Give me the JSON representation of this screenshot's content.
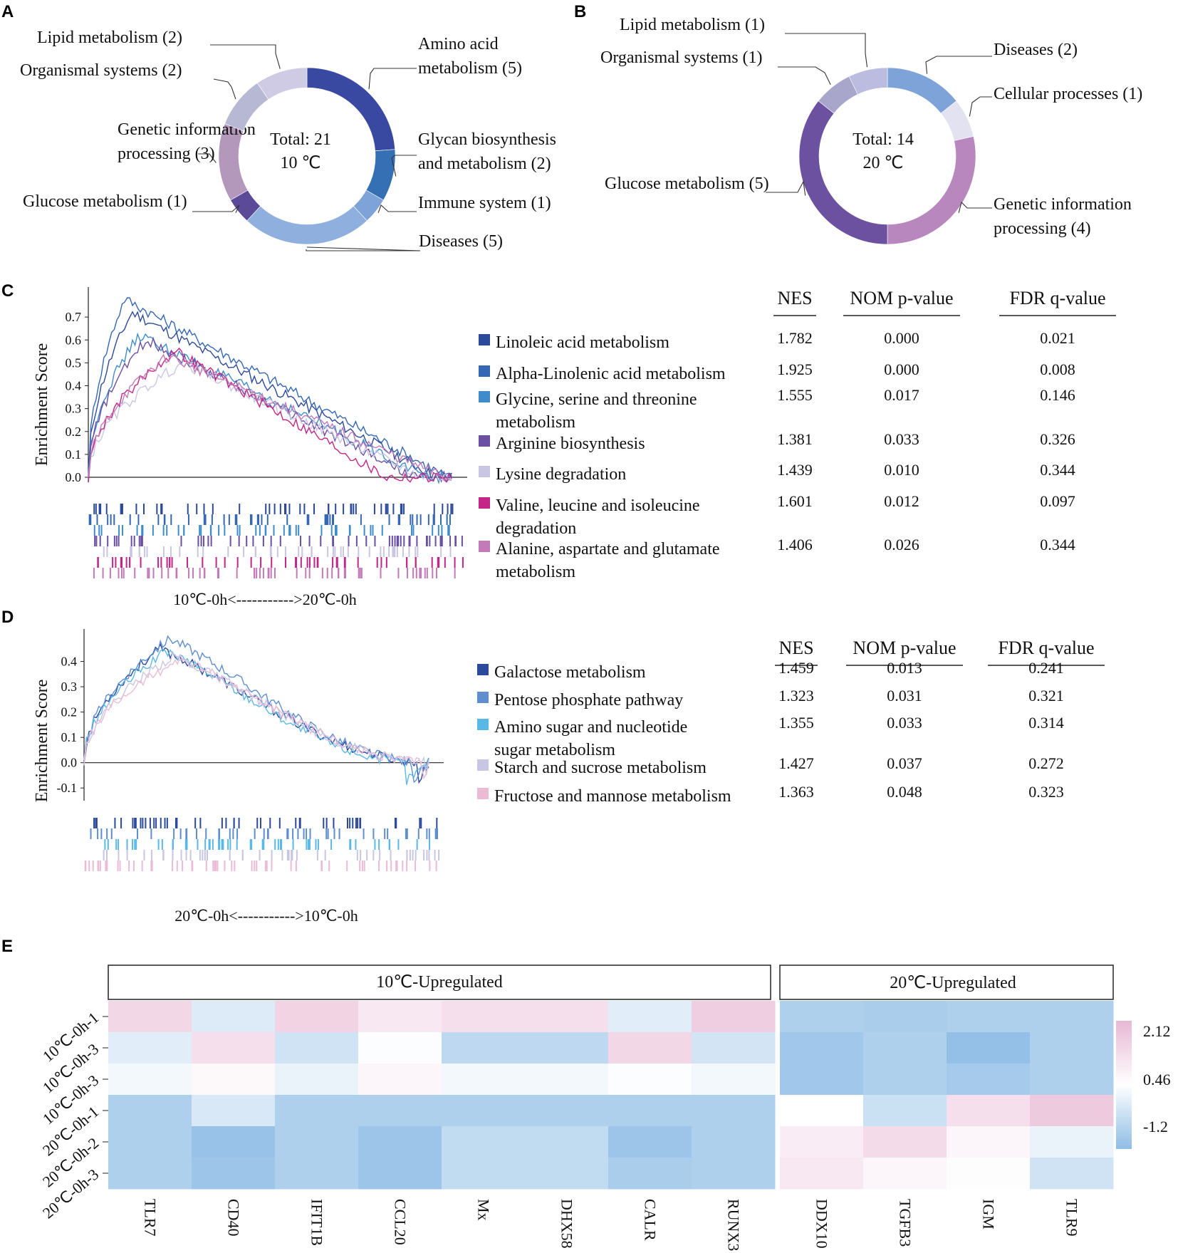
{
  "colors": {
    "amino": "#3949a1",
    "glycan": "#3570b5",
    "immune": "#7ea3d8",
    "diseasesA": "#8fb0df",
    "glucose": "#5b4a97",
    "genetic": "#b398bc",
    "organismal": "#b7b8d3",
    "lipid": "#cfcbe4",
    "diseasesB": "#7ea3d8",
    "cellular": "#e3e2f0",
    "geneticB": "#b887bd",
    "glucoseB": "#6c51a0",
    "organismalB": "#a8a6cb",
    "lipidB": "#bcbbe0"
  },
  "panels": {
    "a": "A",
    "b": "B",
    "c": "C",
    "d": "D",
    "e": "E"
  },
  "chart_data": [
    {
      "panel": "A",
      "type": "pie",
      "center_line1": "Total: 21",
      "center_line2": "10 ℃",
      "slices": [
        {
          "label": "Amino acid metabolism (5)",
          "label_lines": [
            "Amino acid",
            "metabolism (5)"
          ],
          "value": 5,
          "color": "#3949a1"
        },
        {
          "label": "Glycan biosynthesis and metabolism (2)",
          "label_lines": [
            "Glycan biosynthesis",
            "and metabolism (2)"
          ],
          "value": 2,
          "color": "#3570b5"
        },
        {
          "label": "Immune system (1)",
          "label_lines": [
            "Immune system (1)"
          ],
          "value": 1,
          "color": "#7ea3d8"
        },
        {
          "label": "Diseases (5)",
          "label_lines": [
            "Diseases (5)"
          ],
          "value": 5,
          "color": "#8fb0df"
        },
        {
          "label": "Glucose metabolism (1)",
          "label_lines": [
            "Glucose metabolism (1)"
          ],
          "value": 1,
          "color": "#5b4a97"
        },
        {
          "label": "Genetic information processing (3)",
          "label_lines": [
            "Genetic information",
            "processing (3)"
          ],
          "value": 3,
          "color": "#b398bc"
        },
        {
          "label": "Organismal systems (2)",
          "label_lines": [
            "Organismal  systems (2)"
          ],
          "value": 2,
          "color": "#b7b8d3"
        },
        {
          "label": "Lipid metabolism (2)",
          "label_lines": [
            "Lipid  metabolism (2)"
          ],
          "value": 2,
          "color": "#cfcbe4"
        }
      ]
    },
    {
      "panel": "B",
      "type": "pie",
      "center_line1": "Total: 14",
      "center_line2": "20 ℃",
      "slices": [
        {
          "label": "Diseases (2)",
          "label_lines": [
            "Diseases (2)"
          ],
          "value": 2,
          "color": "#7ea3d8"
        },
        {
          "label": "Cellular processes (1)",
          "label_lines": [
            "Cellular processes (1)"
          ],
          "value": 1,
          "color": "#e3e2f0"
        },
        {
          "label": "Genetic information processing (4)",
          "label_lines": [
            "Genetic information",
            "processing (4)"
          ],
          "value": 4,
          "color": "#b887bd"
        },
        {
          "label": "Glucose metabolism (5)",
          "label_lines": [
            "Glucose metabolism (5)"
          ],
          "value": 5,
          "color": "#6c51a0"
        },
        {
          "label": "Organismal systems (1)",
          "label_lines": [
            "Organismal  systems (1)"
          ],
          "value": 1,
          "color": "#a8a6cb"
        },
        {
          "label": "Lipid metabolism (1)",
          "label_lines": [
            "Lipid  metabolism (1)"
          ],
          "value": 1,
          "color": "#bcbbe0"
        }
      ]
    },
    {
      "panel": "C",
      "type": "line",
      "ylabel": "Enrichment Score",
      "yticks": [
        "0.7",
        "0.6",
        "0.5",
        "0.4",
        "0.3",
        "0.2",
        "0.1",
        "0.0"
      ],
      "ylim": [
        0,
        0.8
      ],
      "xlabel": "10℃-0h<----------->20℃-0h",
      "table_headers": [
        "NES",
        "NOM p-value",
        "FDR q-value"
      ],
      "series": [
        {
          "name": "Linoleic acid metabolism",
          "name_lines": [
            "Linoleic acid metabolism"
          ],
          "color": "#2c4a9c",
          "nes": "1.782",
          "nom_p": "0.000",
          "fdr_q": "0.021",
          "peak": 0.72,
          "peak_at": 0.12,
          "end_at": 0.96
        },
        {
          "name": "Alpha-Linolenic acid metabolism",
          "name_lines": [
            "Alpha-Linolenic acid metabolism"
          ],
          "color": "#3467b4",
          "nes": "1.925",
          "nom_p": "0.000",
          "fdr_q": "0.008",
          "peak": 0.78,
          "peak_at": 0.1,
          "end_at": 0.99
        },
        {
          "name": "Glycine, serine and threonine metabolism",
          "name_lines": [
            "Glycine, serine and threonine",
            "metabolism"
          ],
          "color": "#3f8ccc",
          "nes": "1.555",
          "nom_p": "0.017",
          "fdr_q": "0.146",
          "peak": 0.62,
          "peak_at": 0.14,
          "end_at": 0.94
        },
        {
          "name": "Arginine biosynthesis",
          "name_lines": [
            "Arginine biosynthesis"
          ],
          "color": "#6a4fa3",
          "nes": "1.381",
          "nom_p": "0.033",
          "fdr_q": "0.326",
          "peak": 0.6,
          "peak_at": 0.16,
          "end_at": 0.9
        },
        {
          "name": "Lysine degradation",
          "name_lines": [
            "Lysine degradation"
          ],
          "color": "#c8c6e2",
          "nes": "1.439",
          "nom_p": "0.010",
          "fdr_q": "0.344",
          "peak": 0.5,
          "peak_at": 0.26,
          "end_at": 0.92
        },
        {
          "name": "Valine, leucine and isoleucine degradation",
          "name_lines": [
            "Valine, leucine and isoleucine",
            "degradation"
          ],
          "color": "#c42587",
          "nes": "1.601",
          "nom_p": "0.012",
          "fdr_q": "0.097",
          "peak": 0.55,
          "peak_at": 0.24,
          "end_at": 0.82
        },
        {
          "name": "Alanine, aspartate and glutamate metabolism",
          "name_lines": [
            "Alanine, aspartate and glutamate",
            "metabolism"
          ],
          "color": "#c27bb8",
          "nes": "1.406",
          "nom_p": "0.026",
          "fdr_q": "0.344",
          "peak": 0.53,
          "peak_at": 0.22,
          "end_at": 0.98
        }
      ]
    },
    {
      "panel": "D",
      "type": "line",
      "ylabel": "Enrichment Score",
      "yticks": [
        "0.4",
        "0.3",
        "0.2",
        "0.1",
        "0.0",
        "-0.1"
      ],
      "ylim": [
        -0.15,
        0.5
      ],
      "xlabel": "20℃-0h<----------->10℃-0h",
      "table_headers": [
        "NES",
        "NOM p-value",
        "FDR q-value"
      ],
      "series": [
        {
          "name": "Galactose metabolism",
          "name_lines": [
            "Galactose metabolism"
          ],
          "color": "#2c4a9c",
          "nes": "1.459",
          "nom_p": "0.013",
          "fdr_q": "0.241",
          "peak": 0.45,
          "peak_at": 0.22,
          "end_at": 0.97
        },
        {
          "name": "Pentose phosphate pathway",
          "name_lines": [
            "Pentose phosphate pathway"
          ],
          "color": "#5e8ed0",
          "nes": "1.323",
          "nom_p": "0.031",
          "fdr_q": "0.321",
          "peak": 0.49,
          "peak_at": 0.25,
          "end_at": 0.95
        },
        {
          "name": "Amino sugar and nucleotide sugar metabolism",
          "name_lines": [
            "Amino sugar and nucleotide",
            " sugar metabolism"
          ],
          "color": "#5ab8e6",
          "nes": "1.355",
          "nom_p": "0.033",
          "fdr_q": "0.314",
          "peak": 0.44,
          "peak_at": 0.24,
          "end_at": 0.93
        },
        {
          "name": "Starch and sucrose metabolism",
          "name_lines": [
            "Starch and sucrose metabolism"
          ],
          "color": "#c8c6e2",
          "nes": "1.427",
          "nom_p": "0.037",
          "fdr_q": "0.272",
          "peak": 0.42,
          "peak_at": 0.26,
          "end_at": 0.99
        },
        {
          "name": "Fructose and mannose metabolism",
          "name_lines": [
            "Fructose and mannose metabolism"
          ],
          "color": "#ebbbd6",
          "nes": "1.363",
          "nom_p": "0.048",
          "fdr_q": "0.323",
          "peak": 0.41,
          "peak_at": 0.28,
          "end_at": 0.98
        }
      ]
    },
    {
      "panel": "E",
      "type": "heatmap",
      "group_labels": [
        "10℃-Upregulated",
        "20℃-Upregulated"
      ],
      "rows": [
        "10℃-0h-1",
        "10℃-0h-3",
        "10℃-0h-3",
        "20℃-0h-1",
        "20℃-0h-2",
        "20℃-0h-3"
      ],
      "cols_left": [
        "TLR7",
        "CD40",
        "IFIT1B",
        "CCL20",
        "Mx",
        "DHX58",
        "CALR",
        "RUNX3"
      ],
      "cols_right": [
        "DDX10",
        "TGFB3",
        "IGM",
        "TLR9"
      ],
      "legend_ticks": [
        "2.12",
        "0.46",
        "-1.2"
      ],
      "vmin": -2.0,
      "vmax": 2.12,
      "values_left": [
        [
          1.4,
          -0.3,
          1.5,
          1.0,
          1.2,
          1.2,
          -0.2,
          1.6
        ],
        [
          -0.2,
          1.2,
          -0.6,
          0.4,
          -1.0,
          -1.0,
          1.4,
          -0.5
        ],
        [
          0.2,
          0.6,
          0.0,
          0.7,
          0.2,
          0.2,
          0.4,
          0.2
        ],
        [
          -1.3,
          -0.4,
          -1.3,
          -1.3,
          -1.3,
          -1.3,
          -1.3,
          -1.3
        ],
        [
          -1.3,
          -1.8,
          -1.3,
          -1.7,
          -0.9,
          -0.9,
          -1.7,
          -1.3
        ],
        [
          -1.3,
          -1.7,
          -1.3,
          -1.7,
          -0.9,
          -0.9,
          -1.4,
          -1.3
        ]
      ],
      "values_right": [
        [
          -1.3,
          -1.4,
          -1.3,
          -1.3
        ],
        [
          -1.6,
          -1.3,
          -1.9,
          -1.3
        ],
        [
          -1.6,
          -1.3,
          -1.5,
          -1.3
        ],
        [
          0.46,
          -0.7,
          1.2,
          1.7
        ],
        [
          0.9,
          1.3,
          0.7,
          0.0
        ],
        [
          1.0,
          0.7,
          0.5,
          -0.6
        ]
      ]
    }
  ]
}
